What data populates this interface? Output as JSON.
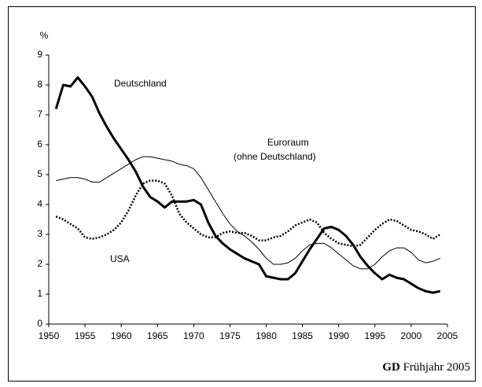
{
  "chart_data": {
    "type": "line",
    "y_label": "%",
    "footer": {
      "bold": "GD",
      "text": "Frühjahr 2005"
    },
    "xlim": [
      1950,
      2005
    ],
    "xticks": [
      1950,
      1955,
      1960,
      1965,
      1970,
      1975,
      1980,
      1985,
      1990,
      1995,
      2000,
      2005
    ],
    "ylim": [
      0,
      9
    ],
    "yticks": [
      0,
      1,
      2,
      3,
      4,
      5,
      6,
      7,
      8,
      9
    ],
    "grid": false,
    "x": [
      1951,
      1952,
      1953,
      1954,
      1955,
      1956,
      1957,
      1958,
      1959,
      1960,
      1961,
      1962,
      1963,
      1964,
      1965,
      1966,
      1967,
      1968,
      1969,
      1970,
      1971,
      1972,
      1973,
      1974,
      1975,
      1976,
      1977,
      1978,
      1979,
      1980,
      1981,
      1982,
      1983,
      1984,
      1985,
      1986,
      1987,
      1988,
      1989,
      1990,
      1991,
      1992,
      1993,
      1994,
      1995,
      1996,
      1997,
      1998,
      1999,
      2000,
      2001,
      2002,
      2003,
      2004
    ],
    "series": [
      {
        "name": "Deutschland",
        "color": "#000000",
        "width": 3,
        "dash": "none",
        "values": [
          7.2,
          8.0,
          7.95,
          8.25,
          7.95,
          7.6,
          7.05,
          6.6,
          6.2,
          5.85,
          5.5,
          5.1,
          4.6,
          4.25,
          4.1,
          3.9,
          4.1,
          4.1,
          4.1,
          4.15,
          4.0,
          3.4,
          2.95,
          2.7,
          2.5,
          2.35,
          2.2,
          2.1,
          2.0,
          1.6,
          1.55,
          1.5,
          1.5,
          1.7,
          2.1,
          2.5,
          2.85,
          3.2,
          3.25,
          3.15,
          2.95,
          2.65,
          2.25,
          1.95,
          1.7,
          1.5,
          1.65,
          1.55,
          1.5,
          1.35,
          1.2,
          1.1,
          1.05,
          1.1
        ]
      },
      {
        "name": "Euroraum",
        "subname": "(ohne Deutschland)",
        "color": "#000000",
        "width": 1,
        "dash": "none",
        "values": [
          4.8,
          4.85,
          4.9,
          4.9,
          4.85,
          4.75,
          4.75,
          4.9,
          5.05,
          5.2,
          5.35,
          5.5,
          5.6,
          5.6,
          5.55,
          5.5,
          5.45,
          5.35,
          5.3,
          5.2,
          4.9,
          4.5,
          4.1,
          3.7,
          3.35,
          3.1,
          2.95,
          2.75,
          2.5,
          2.2,
          2.0,
          2.0,
          2.05,
          2.2,
          2.45,
          2.65,
          2.7,
          2.7,
          2.55,
          2.35,
          2.15,
          1.95,
          1.85,
          1.85,
          2.0,
          2.25,
          2.45,
          2.55,
          2.55,
          2.4,
          2.15,
          2.05,
          2.1,
          2.2
        ]
      },
      {
        "name": "USA",
        "color": "#000000",
        "width": 2.5,
        "dash": "2,2",
        "values": [
          3.6,
          3.5,
          3.35,
          3.2,
          2.9,
          2.85,
          2.9,
          3.0,
          3.15,
          3.4,
          3.8,
          4.3,
          4.7,
          4.8,
          4.8,
          4.7,
          4.3,
          3.7,
          3.4,
          3.2,
          3.0,
          2.9,
          2.9,
          3.05,
          3.1,
          3.05,
          3.05,
          2.95,
          2.8,
          2.8,
          2.9,
          2.95,
          3.1,
          3.3,
          3.4,
          3.5,
          3.4,
          3.05,
          2.85,
          2.7,
          2.65,
          2.6,
          2.65,
          2.9,
          3.15,
          3.35,
          3.5,
          3.45,
          3.3,
          3.15,
          3.1,
          3.0,
          2.85,
          3.0
        ]
      }
    ]
  }
}
